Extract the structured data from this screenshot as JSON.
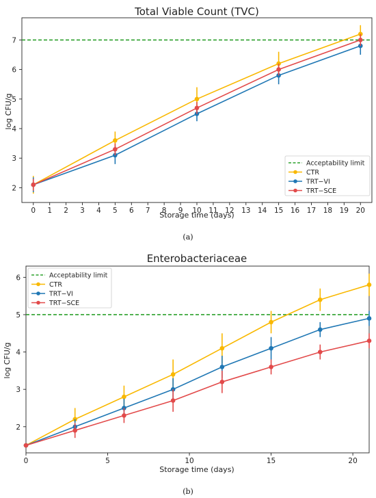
{
  "panel_labels": [
    "(a)",
    "(b)"
  ],
  "chart_data": [
    {
      "type": "line",
      "title": "Total Viable Count (TVC)",
      "xlabel": "Storage time (days)",
      "ylabel": "log CFU/g",
      "xlim": [
        -0.7,
        20.7
      ],
      "ylim": [
        1.5,
        7.75
      ],
      "xticks": [
        0,
        1,
        2,
        3,
        4,
        5,
        6,
        7,
        8,
        9,
        10,
        11,
        12,
        13,
        14,
        15,
        16,
        17,
        18,
        19,
        20
      ],
      "yticks": [
        2,
        3,
        4,
        5,
        6,
        7
      ],
      "x": [
        0,
        5,
        10,
        15,
        20
      ],
      "threshold": {
        "name": "Acceptability limit",
        "value": 7,
        "color": "#2ca02c"
      },
      "series": [
        {
          "name": "CTR",
          "color": "#f9b800",
          "values": [
            2.1,
            3.6,
            5.0,
            6.2,
            7.2
          ],
          "errors": [
            0.3,
            0.3,
            0.4,
            0.4,
            0.3
          ]
        },
        {
          "name": "TRT−VI",
          "color": "#1f77b4",
          "values": [
            2.1,
            3.1,
            4.5,
            5.8,
            6.8
          ],
          "errors": [
            0.25,
            0.3,
            0.25,
            0.3,
            0.3
          ]
        },
        {
          "name": "TRT−SCE",
          "color": "#e24a4a",
          "values": [
            2.1,
            3.3,
            4.7,
            6.0,
            7.0
          ],
          "errors": [
            0.2,
            0.2,
            0.2,
            0.2,
            0.2
          ]
        }
      ],
      "legend_position": "lower right",
      "grid": false
    },
    {
      "type": "line",
      "title": "Enterobacteriaceae",
      "xlabel": "Storage time (days)",
      "ylabel": "log CFU/g",
      "xlim": [
        0,
        21
      ],
      "ylim": [
        1.3,
        6.3
      ],
      "xticks": [
        0,
        5,
        10,
        15,
        20
      ],
      "yticks": [
        2,
        3,
        4,
        5,
        6
      ],
      "x": [
        0,
        3,
        6,
        9,
        12,
        15,
        18,
        21
      ],
      "threshold": {
        "name": "Acceptability limit",
        "value": 5,
        "color": "#2ca02c"
      },
      "series": [
        {
          "name": "CTR",
          "color": "#f9b800",
          "values": [
            1.5,
            2.2,
            2.8,
            3.4,
            4.1,
            4.8,
            5.4,
            5.8
          ],
          "errors": [
            0,
            0.3,
            0.3,
            0.4,
            0.4,
            0.3,
            0.3,
            0.3
          ]
        },
        {
          "name": "TRT−VI",
          "color": "#1f77b4",
          "values": [
            1.5,
            2.0,
            2.5,
            3.0,
            3.6,
            4.1,
            4.6,
            4.9
          ],
          "errors": [
            0,
            0.2,
            0.25,
            0.3,
            0.3,
            0.3,
            0.2,
            0.2
          ]
        },
        {
          "name": "TRT−SCE",
          "color": "#e24a4a",
          "values": [
            1.5,
            1.9,
            2.3,
            2.7,
            3.2,
            3.6,
            4.0,
            4.3
          ],
          "errors": [
            0,
            0.2,
            0.2,
            0.3,
            0.3,
            0.2,
            0.2,
            0.2
          ]
        }
      ],
      "legend_position": "upper left",
      "grid": false
    }
  ]
}
